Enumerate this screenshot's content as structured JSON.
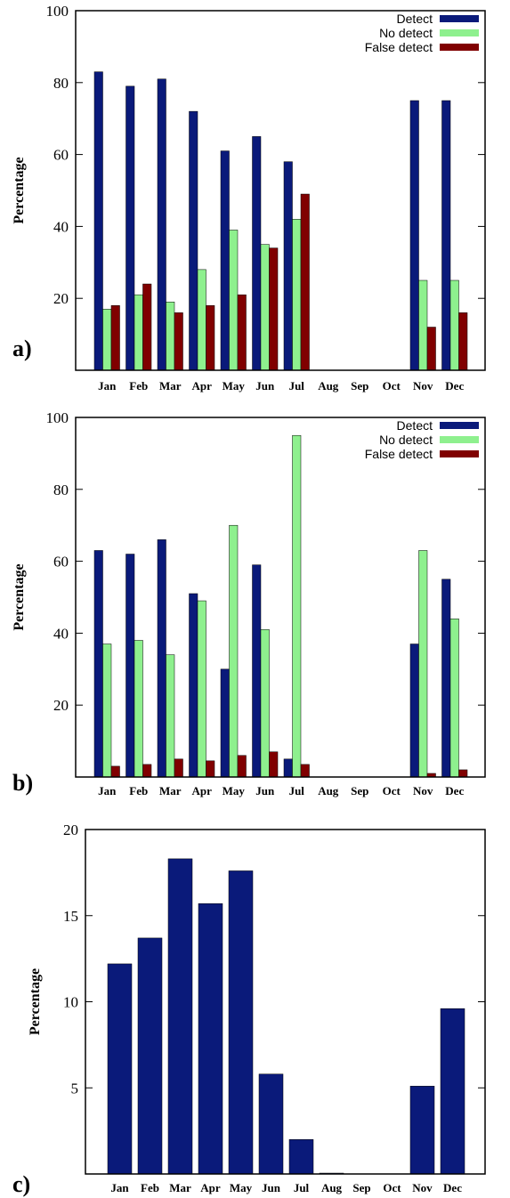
{
  "chart_data": [
    {
      "type": "bar",
      "panel_label": "a)",
      "ylabel": "Percentage",
      "ylim": [
        0,
        100
      ],
      "yticks": [
        20,
        40,
        60,
        80,
        100
      ],
      "categories": [
        "Jan",
        "Feb",
        "Mar",
        "Apr",
        "May",
        "Jun",
        "Jul",
        "Aug",
        "Sep",
        "Oct",
        "Nov",
        "Dec"
      ],
      "legend_position": "top-right",
      "series": [
        {
          "name": "Detect",
          "color": "#0a1a7a",
          "values": [
            83,
            79,
            81,
            72,
            61,
            65,
            58,
            null,
            null,
            null,
            75,
            75
          ]
        },
        {
          "name": "No detect",
          "color": "#8ef08e",
          "values": [
            17,
            21,
            19,
            28,
            39,
            35,
            42,
            null,
            null,
            null,
            25,
            25
          ]
        },
        {
          "name": "False detect",
          "color": "#800000",
          "values": [
            18,
            24,
            16,
            18,
            21,
            34,
            49,
            null,
            null,
            null,
            12,
            16
          ]
        }
      ]
    },
    {
      "type": "bar",
      "panel_label": "b)",
      "ylabel": "Percentage",
      "ylim": [
        0,
        100
      ],
      "yticks": [
        20,
        40,
        60,
        80,
        100
      ],
      "categories": [
        "Jan",
        "Feb",
        "Mar",
        "Apr",
        "May",
        "Jun",
        "Jul",
        "Aug",
        "Sep",
        "Oct",
        "Nov",
        "Dec"
      ],
      "legend_position": "top-right",
      "series": [
        {
          "name": "Detect",
          "color": "#0a1a7a",
          "values": [
            63,
            62,
            66,
            51,
            30,
            59,
            5,
            null,
            null,
            null,
            37,
            55
          ]
        },
        {
          "name": "No detect",
          "color": "#8ef08e",
          "values": [
            37,
            38,
            34,
            49,
            70,
            41,
            95,
            null,
            null,
            null,
            63,
            44
          ]
        },
        {
          "name": "False detect",
          "color": "#800000",
          "values": [
            3,
            3.5,
            5,
            4.5,
            6,
            7,
            3.5,
            null,
            null,
            null,
            1,
            2
          ]
        }
      ]
    },
    {
      "type": "bar",
      "panel_label": "c)",
      "ylabel": "Percentage",
      "ylim": [
        0,
        20
      ],
      "yticks": [
        5,
        10,
        15,
        20
      ],
      "categories": [
        "Jan",
        "Feb",
        "Mar",
        "Apr",
        "May",
        "Jun",
        "Jul",
        "Aug",
        "Sep",
        "Oct",
        "Nov",
        "Dec"
      ],
      "series": [
        {
          "color": "#0a1a7a",
          "values": [
            12.2,
            13.7,
            18.3,
            15.7,
            17.6,
            5.8,
            2.0,
            0.05,
            0,
            0,
            5.1,
            9.6
          ]
        }
      ]
    }
  ]
}
